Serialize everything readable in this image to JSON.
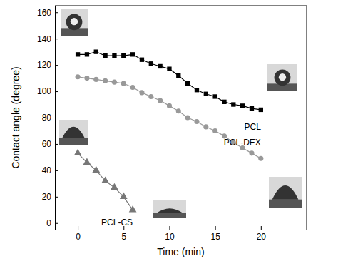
{
  "chart_data": {
    "type": "line",
    "x_label": "Time (min)",
    "y_label": "Contact angle (degree)",
    "xlim": [
      -2.5,
      25
    ],
    "xticks": [
      0,
      5,
      10,
      15,
      20
    ],
    "ylim": [
      -5,
      165
    ],
    "yticks": [
      0,
      20,
      40,
      60,
      80,
      100,
      120,
      140,
      160
    ],
    "series": [
      {
        "name": "PCL",
        "color": "#000000",
        "marker": "square",
        "x": [
          0,
          1,
          2,
          3,
          4,
          5,
          6,
          7,
          8,
          9,
          10,
          11,
          12,
          13,
          14,
          15,
          16,
          17,
          18,
          19,
          20
        ],
        "values": [
          128,
          128,
          130,
          127,
          127,
          127,
          128,
          124,
          121,
          119,
          117,
          112,
          106,
          101,
          98,
          96,
          92,
          90,
          89,
          87,
          86
        ]
      },
      {
        "name": "PCL-DEX",
        "color": "#999999",
        "marker": "circle",
        "x": [
          0,
          1,
          2,
          3,
          4,
          5,
          6,
          7,
          8,
          9,
          10,
          11,
          12,
          13,
          14,
          15,
          16,
          17,
          18,
          19,
          20
        ],
        "values": [
          111,
          110,
          109,
          108,
          107,
          106,
          103,
          99,
          96,
          93,
          89,
          85,
          80,
          77,
          73,
          70,
          66,
          61,
          57,
          53,
          49
        ]
      },
      {
        "name": "PCL-CS",
        "color": "#777777",
        "marker": "triangle",
        "x": [
          0,
          1,
          2,
          3,
          4,
          5,
          6
        ],
        "values": [
          53,
          46,
          40,
          32,
          27,
          20,
          10
        ]
      }
    ]
  }
}
